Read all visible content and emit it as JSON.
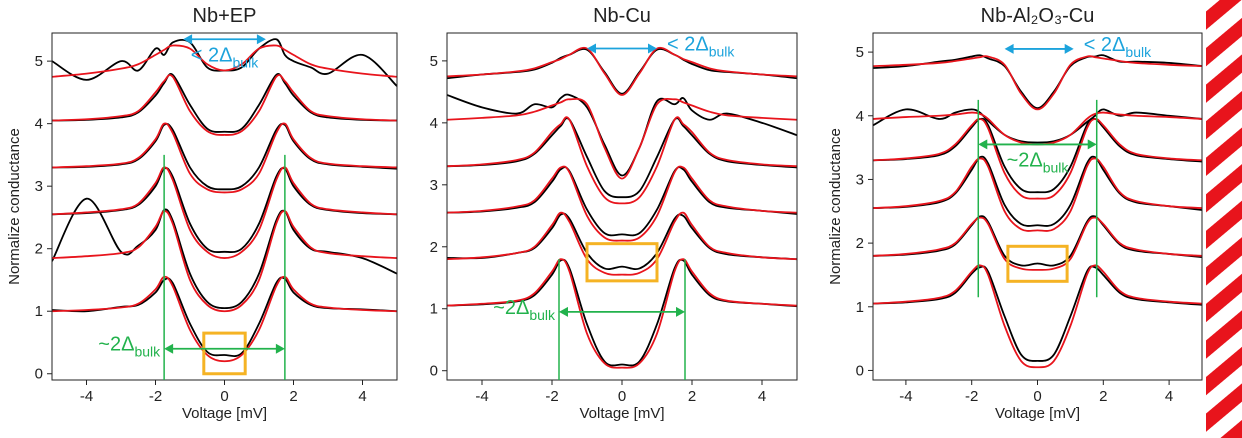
{
  "chart_data": [
    {
      "type": "line",
      "title": "Nb+EP",
      "xlabel": "Voltage [mV]",
      "ylabel": "Normalize conductance",
      "xlim": [
        -5,
        5
      ],
      "ylim": [
        -0.1,
        5.45
      ],
      "xticks": [
        -4,
        -2,
        0,
        2,
        4
      ],
      "yticks": [
        0,
        1,
        2,
        3,
        4,
        5
      ],
      "x": [
        -5,
        -4,
        -3,
        -2.5,
        -2,
        -1.75,
        -1.5,
        -1,
        -0.5,
        0,
        0.5,
        1,
        1.5,
        1.75,
        2,
        2.5,
        3,
        4,
        5
      ],
      "series": [
        {
          "color": "#000000",
          "values": [
            1.02,
            1.0,
            1.07,
            1.1,
            1.3,
            1.5,
            1.45,
            0.8,
            0.35,
            0.3,
            0.33,
            0.8,
            1.45,
            1.52,
            1.3,
            1.1,
            1.05,
            1.03,
            1.0
          ]
        },
        {
          "color": "#e8141c",
          "values": [
            1.0,
            1.02,
            1.06,
            1.12,
            1.35,
            1.55,
            1.4,
            0.7,
            0.3,
            0.2,
            0.3,
            0.7,
            1.4,
            1.55,
            1.35,
            1.12,
            1.06,
            1.02,
            1.0
          ]
        },
        {
          "color": "#000000",
          "values": [
            1.8,
            2.8,
            1.95,
            2.05,
            2.3,
            2.62,
            2.45,
            1.6,
            1.15,
            1.05,
            1.15,
            1.6,
            2.45,
            2.6,
            2.3,
            2.0,
            1.95,
            1.85,
            1.6
          ]
        },
        {
          "color": "#e8141c",
          "values": [
            1.85,
            1.88,
            1.93,
            2.02,
            2.35,
            2.6,
            2.4,
            1.5,
            1.1,
            1.0,
            1.1,
            1.5,
            2.4,
            2.6,
            2.35,
            2.02,
            1.93,
            1.88,
            1.85
          ]
        },
        {
          "color": "#000000",
          "values": [
            2.55,
            2.57,
            2.62,
            2.7,
            3.0,
            3.28,
            3.15,
            2.4,
            2.0,
            1.95,
            2.0,
            2.4,
            3.15,
            3.28,
            3.0,
            2.7,
            2.62,
            2.57,
            2.55
          ]
        },
        {
          "color": "#e8141c",
          "values": [
            2.55,
            2.58,
            2.63,
            2.72,
            3.05,
            3.3,
            3.1,
            2.3,
            1.95,
            1.85,
            1.95,
            2.3,
            3.1,
            3.3,
            3.05,
            2.72,
            2.63,
            2.58,
            2.55
          ]
        },
        {
          "color": "#000000",
          "values": [
            3.3,
            3.31,
            3.35,
            3.43,
            3.72,
            3.98,
            3.9,
            3.3,
            3.0,
            2.95,
            3.0,
            3.3,
            3.9,
            3.98,
            3.72,
            3.43,
            3.35,
            3.31,
            3.28
          ]
        },
        {
          "color": "#e8141c",
          "values": [
            3.3,
            3.32,
            3.36,
            3.45,
            3.75,
            4.0,
            3.85,
            3.2,
            2.95,
            2.9,
            2.95,
            3.2,
            3.85,
            4.0,
            3.75,
            3.45,
            3.36,
            3.32,
            3.3
          ]
        },
        {
          "color": "#000000",
          "values": [
            4.05,
            4.06,
            4.1,
            4.18,
            4.45,
            4.65,
            4.78,
            4.3,
            3.92,
            3.87,
            3.92,
            4.3,
            4.78,
            4.65,
            4.45,
            4.18,
            4.1,
            4.06,
            4.05
          ]
        },
        {
          "color": "#e8141c",
          "values": [
            4.05,
            4.07,
            4.12,
            4.2,
            4.5,
            4.68,
            4.75,
            4.2,
            3.88,
            3.82,
            3.88,
            4.2,
            4.75,
            4.68,
            4.5,
            4.2,
            4.12,
            4.07,
            4.05
          ]
        },
        {
          "color": "#000000",
          "values": [
            5.0,
            4.7,
            5.0,
            4.85,
            5.2,
            5.1,
            5.3,
            5.3,
            4.9,
            4.85,
            4.9,
            5.2,
            5.35,
            5.1,
            5.0,
            4.9,
            4.8,
            5.1,
            4.6
          ]
        },
        {
          "color": "#e8141c",
          "values": [
            4.75,
            4.8,
            4.88,
            4.95,
            5.1,
            5.18,
            5.25,
            5.2,
            4.95,
            4.85,
            4.95,
            5.2,
            5.25,
            5.18,
            5.1,
            4.95,
            4.88,
            4.8,
            4.75
          ]
        }
      ],
      "vlines": {
        "x": [
          -1.75,
          1.75
        ],
        "y": [
          -0.1,
          3.5
        ],
        "color": "#22b24c"
      },
      "arrows": [
        {
          "x": [
            -1.75,
            1.75
          ],
          "y": 0.4,
          "color": "#22b24c",
          "label": "~2Δ",
          "sub": "bulk",
          "label_side": "left"
        },
        {
          "x": [
            -1.2,
            1.2
          ],
          "y": 5.35,
          "color": "#1ca3dc",
          "label": "< 2Δ",
          "sub": "bulk",
          "label_side": "below"
        }
      ],
      "boxes": [
        {
          "x": [
            -0.6,
            0.6
          ],
          "y": [
            0,
            0.65
          ],
          "color": "#f5b324"
        }
      ]
    },
    {
      "type": "line",
      "title": "Nb-Cu",
      "xlabel": "Voltage [mV]",
      "ylabel": "",
      "xlim": [
        -5,
        5
      ],
      "ylim": [
        -0.15,
        5.45
      ],
      "xticks": [
        -4,
        -2,
        0,
        2,
        4
      ],
      "yticks": [
        0,
        1,
        2,
        3,
        4,
        5
      ],
      "x": [
        -5,
        -4,
        -3,
        -2.5,
        -2,
        -1.75,
        -1.5,
        -1,
        -0.5,
        0,
        0.5,
        1,
        1.5,
        1.75,
        2,
        2.5,
        3,
        4,
        5
      ],
      "series": [
        {
          "color": "#000000",
          "values": [
            1.05,
            1.07,
            1.12,
            1.22,
            1.55,
            1.78,
            1.65,
            0.75,
            0.15,
            0.1,
            0.15,
            0.75,
            1.65,
            1.78,
            1.55,
            1.22,
            1.12,
            1.08,
            1.04
          ]
        },
        {
          "color": "#e8141c",
          "values": [
            1.05,
            1.08,
            1.13,
            1.25,
            1.6,
            1.8,
            1.6,
            0.6,
            0.12,
            0.05,
            0.12,
            0.6,
            1.6,
            1.8,
            1.6,
            1.25,
            1.13,
            1.08,
            1.05
          ]
        },
        {
          "color": "#000000",
          "values": [
            1.82,
            1.82,
            1.9,
            1.98,
            2.3,
            2.52,
            2.45,
            1.9,
            1.65,
            1.68,
            1.65,
            1.9,
            2.45,
            2.5,
            2.3,
            1.98,
            1.88,
            1.83,
            1.8
          ]
        },
        {
          "color": "#e8141c",
          "values": [
            1.8,
            1.83,
            1.9,
            2.0,
            2.35,
            2.55,
            2.4,
            1.8,
            1.58,
            1.55,
            1.58,
            1.8,
            2.4,
            2.55,
            2.35,
            2.0,
            1.9,
            1.83,
            1.8
          ]
        },
        {
          "color": "#000000",
          "values": [
            2.55,
            2.57,
            2.63,
            2.72,
            3.05,
            3.25,
            3.22,
            2.6,
            2.22,
            2.2,
            2.22,
            2.6,
            3.22,
            3.25,
            3.05,
            2.72,
            2.63,
            2.58,
            2.53
          ]
        },
        {
          "color": "#e8141c",
          "values": [
            2.55,
            2.58,
            2.65,
            2.75,
            3.1,
            3.28,
            3.2,
            2.5,
            2.15,
            2.1,
            2.15,
            2.5,
            3.2,
            3.28,
            3.1,
            2.75,
            2.65,
            2.58,
            2.55
          ]
        },
        {
          "color": "#000000",
          "values": [
            3.3,
            3.32,
            3.38,
            3.5,
            3.8,
            3.95,
            4.05,
            3.45,
            2.9,
            2.8,
            2.9,
            3.45,
            4.05,
            3.95,
            3.8,
            3.5,
            3.38,
            3.32,
            3.28
          ]
        },
        {
          "color": "#e8141c",
          "values": [
            3.3,
            3.33,
            3.4,
            3.52,
            3.85,
            3.98,
            4.05,
            3.3,
            2.8,
            2.7,
            2.8,
            3.3,
            4.05,
            3.98,
            3.85,
            3.52,
            3.4,
            3.33,
            3.3
          ]
        },
        {
          "color": "#000000",
          "values": [
            4.45,
            4.25,
            4.15,
            4.3,
            4.25,
            4.4,
            4.45,
            4.25,
            3.65,
            3.15,
            3.6,
            4.35,
            4.3,
            4.4,
            4.2,
            4.05,
            4.15,
            4.0,
            3.8
          ]
        },
        {
          "color": "#e8141c",
          "values": [
            4.05,
            4.08,
            4.12,
            4.18,
            4.28,
            4.33,
            4.38,
            4.3,
            3.6,
            3.1,
            3.6,
            4.3,
            4.38,
            4.33,
            4.28,
            4.18,
            4.12,
            4.08,
            4.05
          ]
        },
        {
          "color": "#000000",
          "values": [
            4.72,
            4.78,
            4.82,
            4.86,
            4.97,
            5.05,
            5.1,
            5.18,
            4.82,
            4.47,
            4.82,
            5.18,
            5.1,
            5.02,
            4.95,
            4.85,
            4.82,
            4.78,
            4.72
          ]
        },
        {
          "color": "#e8141c",
          "values": [
            4.75,
            4.78,
            4.83,
            4.88,
            4.98,
            5.03,
            5.1,
            5.2,
            4.8,
            4.45,
            4.8,
            5.2,
            5.1,
            5.03,
            4.98,
            4.88,
            4.83,
            4.78,
            4.75
          ]
        }
      ],
      "vlines": {
        "x": [
          -1.8,
          1.8
        ],
        "y": [
          -0.15,
          1.8
        ],
        "color": "#22b24c"
      },
      "arrows": [
        {
          "x": [
            -1.8,
            1.8
          ],
          "y": 0.95,
          "color": "#22b24c",
          "label": "~2Δ",
          "sub": "bulk",
          "label_side": "left"
        },
        {
          "x": [
            -1.0,
            1.0
          ],
          "y": 5.2,
          "color": "#1ca3dc",
          "label": "< 2Δ",
          "sub": "bulk",
          "label_side": "right"
        }
      ],
      "boxes": [
        {
          "x": [
            -1.0,
            1.0
          ],
          "y": [
            1.45,
            2.05
          ],
          "color": "#f5b324"
        }
      ]
    },
    {
      "type": "line",
      "title": "Nb-Al₂O₃-Cu",
      "xlabel": "Voltage [mV]",
      "ylabel": "Normalize conductance",
      "xlim": [
        -5,
        5
      ],
      "ylim": [
        -0.15,
        5.3
      ],
      "xticks": [
        -4,
        -2,
        0,
        2,
        4
      ],
      "yticks": [
        0,
        1,
        2,
        3,
        4,
        5
      ],
      "x": [
        -5,
        -4,
        -3,
        -2.5,
        -2,
        -1.75,
        -1.5,
        -1,
        -0.5,
        0,
        0.5,
        1,
        1.5,
        1.75,
        2,
        2.5,
        3,
        4,
        5
      ],
      "series": [
        {
          "color": "#000000",
          "values": [
            1.05,
            1.07,
            1.12,
            1.22,
            1.52,
            1.62,
            1.55,
            0.85,
            0.25,
            0.15,
            0.25,
            0.85,
            1.55,
            1.62,
            1.5,
            1.22,
            1.12,
            1.07,
            1.03
          ]
        },
        {
          "color": "#e8141c",
          "values": [
            1.05,
            1.08,
            1.14,
            1.25,
            1.55,
            1.65,
            1.5,
            0.7,
            0.15,
            0.05,
            0.15,
            0.7,
            1.5,
            1.65,
            1.55,
            1.25,
            1.14,
            1.08,
            1.05
          ]
        },
        {
          "color": "#000000",
          "values": [
            1.8,
            1.82,
            1.88,
            1.98,
            2.28,
            2.42,
            2.33,
            1.8,
            1.65,
            1.68,
            1.65,
            1.8,
            2.33,
            2.42,
            2.28,
            1.98,
            1.88,
            1.83,
            1.78
          ]
        },
        {
          "color": "#e8141c",
          "values": [
            1.8,
            1.83,
            1.9,
            2.0,
            2.3,
            2.4,
            2.3,
            1.75,
            1.6,
            1.58,
            1.6,
            1.75,
            2.3,
            2.4,
            2.3,
            2.0,
            1.9,
            1.83,
            1.8
          ]
        },
        {
          "color": "#000000",
          "values": [
            2.55,
            2.57,
            2.64,
            2.78,
            3.15,
            3.35,
            3.25,
            2.6,
            2.3,
            2.28,
            2.3,
            2.6,
            3.25,
            3.35,
            3.15,
            2.78,
            2.64,
            2.58,
            2.52
          ]
        },
        {
          "color": "#e8141c",
          "values": [
            2.55,
            2.58,
            2.66,
            2.8,
            3.2,
            3.33,
            3.2,
            2.5,
            2.22,
            2.2,
            2.22,
            2.5,
            3.2,
            3.33,
            3.2,
            2.8,
            2.66,
            2.58,
            2.55
          ]
        },
        {
          "color": "#000000",
          "values": [
            3.3,
            3.32,
            3.38,
            3.52,
            3.82,
            3.95,
            3.85,
            3.2,
            2.85,
            2.8,
            2.85,
            3.2,
            3.85,
            3.95,
            3.82,
            3.52,
            3.38,
            3.32,
            3.28
          ]
        },
        {
          "color": "#e8141c",
          "values": [
            3.3,
            3.33,
            3.4,
            3.55,
            3.85,
            3.95,
            3.8,
            3.1,
            2.75,
            2.7,
            2.75,
            3.1,
            3.8,
            3.95,
            3.85,
            3.55,
            3.4,
            3.33,
            3.3
          ]
        },
        {
          "color": "#000000",
          "values": [
            3.85,
            4.1,
            3.95,
            4.05,
            4.1,
            4.05,
            3.92,
            3.7,
            3.6,
            3.58,
            3.6,
            3.7,
            3.9,
            4.0,
            4.1,
            4.0,
            4.05,
            4.0,
            3.95
          ]
        },
        {
          "color": "#e8141c",
          "values": [
            3.95,
            3.98,
            4.0,
            4.02,
            4.05,
            4.03,
            3.95,
            3.7,
            3.58,
            3.55,
            3.58,
            3.7,
            3.95,
            4.03,
            4.05,
            4.02,
            4.0,
            3.98,
            3.95
          ]
        },
        {
          "color": "#000000",
          "values": [
            4.75,
            4.78,
            4.85,
            4.88,
            4.93,
            4.95,
            4.9,
            4.78,
            4.38,
            4.12,
            4.38,
            4.78,
            4.92,
            4.93,
            4.95,
            4.85,
            4.85,
            4.83,
            4.78
          ]
        },
        {
          "color": "#e8141c",
          "values": [
            4.78,
            4.8,
            4.83,
            4.86,
            4.9,
            4.92,
            4.93,
            4.8,
            4.35,
            4.1,
            4.35,
            4.8,
            4.93,
            4.92,
            4.9,
            4.86,
            4.83,
            4.8,
            4.78
          ]
        }
      ],
      "vlines": {
        "x": [
          -1.8,
          1.8
        ],
        "y": [
          1.15,
          4.25
        ],
        "color": "#22b24c"
      },
      "arrows": [
        {
          "x": [
            -1.8,
            1.8
          ],
          "y": 3.55,
          "color": "#22b24c",
          "label": "~2Δ",
          "sub": "bulk",
          "label_side": "below"
        },
        {
          "x": [
            -1.0,
            1.1
          ],
          "y": 5.05,
          "color": "#1ca3dc",
          "label": "< 2Δ",
          "sub": "bulk",
          "label_side": "right"
        }
      ],
      "boxes": [
        {
          "x": [
            -0.9,
            0.9
          ],
          "y": [
            1.4,
            1.95
          ],
          "color": "#f5b324"
        }
      ]
    }
  ]
}
